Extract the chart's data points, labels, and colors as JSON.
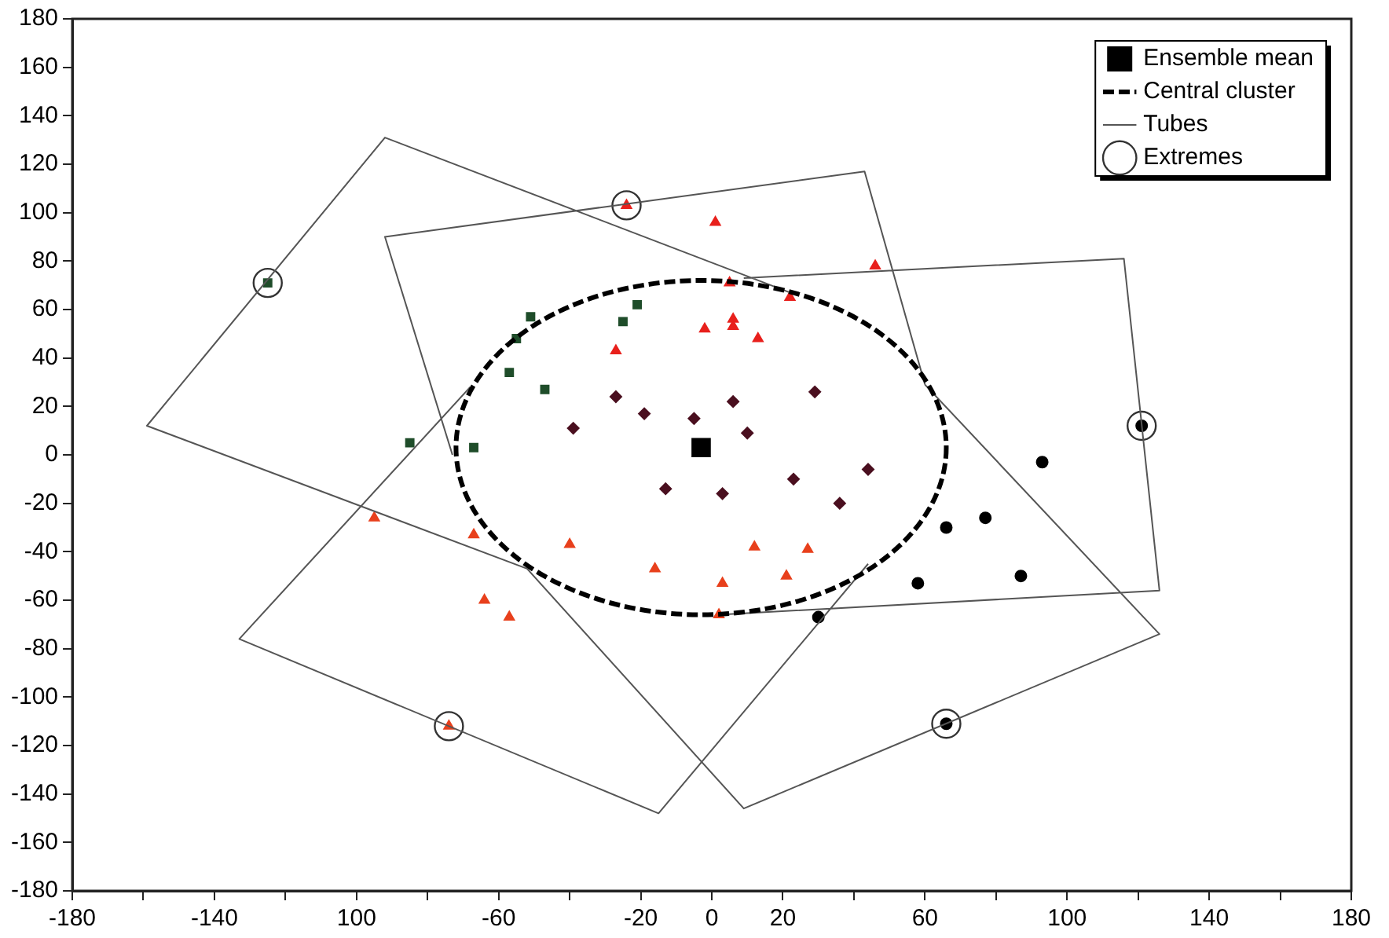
{
  "chart_data": {
    "type": "scatter",
    "xlim": [
      -180,
      180
    ],
    "ylim": [
      -180,
      180
    ],
    "xticks": [
      -180,
      {
        "value": -160,
        "label": null
      },
      -140,
      {
        "value": -120,
        "label": null
      },
      {
        "value": -100,
        "label": "100"
      },
      {
        "value": -80,
        "label": null
      },
      -60,
      {
        "value": -40,
        "label": null
      },
      -20,
      0,
      20,
      {
        "value": 40,
        "label": null
      },
      60,
      {
        "value": 80,
        "label": null
      },
      100,
      {
        "value": 120,
        "label": null
      },
      140,
      {
        "value": 160,
        "label": null
      },
      180
    ],
    "yticks": [
      -180,
      -160,
      -140,
      -120,
      -100,
      -80,
      -60,
      -40,
      -20,
      0,
      20,
      40,
      60,
      80,
      100,
      120,
      140,
      160,
      180
    ],
    "legend": "top right",
    "series": [
      {
        "name": "Ensemble mean",
        "color": "#000000",
        "marker": "square",
        "x": [
          -3
        ],
        "values": [
          3
        ]
      },
      {
        "name": "Central cluster",
        "type": "line",
        "color": "#000000",
        "marker": "none",
        "line_style": "dashed"
      },
      {
        "name": "Tubes",
        "type": "line",
        "color": "#555555",
        "marker": "none",
        "line_style": "solid",
        "x": [
          22,
          -92,
          -159,
          -52,
          null,
          -73,
          -92,
          43,
          60,
          null,
          9,
          116,
          126,
          2,
          null,
          60,
          126,
          9,
          -52,
          null,
          -68,
          -133,
          -15,
          44
        ],
        "values": [
          67,
          131,
          12,
          -47,
          null,
          0,
          90,
          117,
          29,
          null,
          73,
          81,
          -56,
          -66,
          null,
          29,
          -74,
          -146,
          -47,
          null,
          28,
          -76,
          -148,
          -45
        ]
      },
      {
        "color": "#1f4d2a",
        "marker": "square",
        "x": [
          -125,
          -51,
          -21,
          -25,
          -55,
          -57,
          -47,
          -85,
          -67
        ],
        "values": [
          71,
          57,
          62,
          55,
          48,
          34,
          27,
          5,
          3
        ]
      },
      {
        "color": "#e8201c",
        "marker": "triangle",
        "x": [
          -24,
          1,
          46,
          5,
          22,
          -2,
          6,
          6,
          13,
          -27
        ],
        "values": [
          103,
          96,
          78,
          71,
          65,
          52,
          56,
          53,
          48,
          43
        ]
      },
      {
        "color": "#4a0f1f",
        "marker": "diamond",
        "x": [
          -27,
          -19,
          -5,
          6,
          -39,
          29,
          10,
          44,
          23,
          3,
          36,
          -13
        ],
        "values": [
          24,
          17,
          15,
          22,
          11,
          26,
          9,
          -6,
          -10,
          -16,
          -20,
          -14
        ]
      },
      {
        "color": "#000000",
        "marker": "circle",
        "x": [
          121,
          93,
          77,
          66,
          87,
          58,
          30,
          66
        ],
        "values": [
          12,
          -3,
          -26,
          -30,
          -50,
          -53,
          -67,
          -111
        ]
      },
      {
        "color": "#e8401c",
        "marker": "triangle",
        "x": [
          -95,
          -67,
          -40,
          -64,
          -57,
          -74
        ],
        "values": [
          -26,
          -33,
          -37,
          -60,
          -67,
          -112
        ]
      },
      {
        "color": "#e8401c",
        "marker": "triangle",
        "x": [
          -16,
          3,
          2,
          12,
          27,
          21
        ],
        "values": [
          -47,
          -53,
          -66,
          -38,
          -39,
          -50
        ]
      },
      {
        "name": "Extremes",
        "color": "#ffffff",
        "marker": "circle",
        "x": [
          -125,
          -24,
          121,
          66,
          -74
        ],
        "values": [
          71,
          103,
          12,
          -111,
          -112
        ]
      }
    ]
  }
}
